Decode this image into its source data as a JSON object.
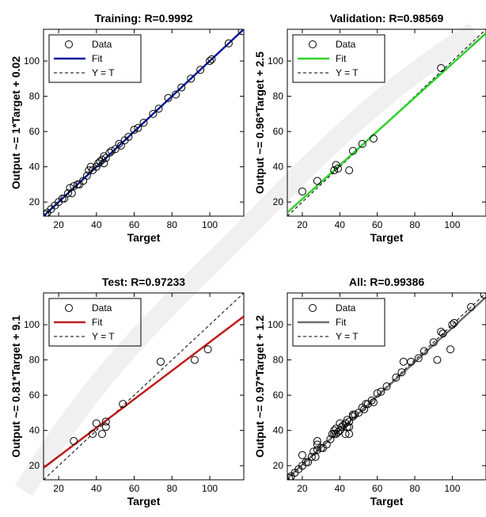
{
  "chart_data": [
    {
      "type": "scatter",
      "title": "Training: R=0.9992",
      "xlabel": "Target",
      "ylabel": "Output ~= 1*Target + 0.02",
      "xlim": [
        12,
        118
      ],
      "ylim": [
        12,
        118
      ],
      "xticks": [
        20,
        40,
        60,
        80,
        100
      ],
      "yticks": [
        20,
        40,
        60,
        80,
        100
      ],
      "legend": [
        "Data",
        "Fit",
        "Y = T"
      ],
      "legend_position": "top-left",
      "fit_color": "#0a1a9c",
      "fit": {
        "slope": 1.0,
        "intercept": 0.02
      },
      "points": [
        [
          13,
          13
        ],
        [
          14,
          14
        ],
        [
          16,
          16
        ],
        [
          18,
          18
        ],
        [
          20,
          20
        ],
        [
          22,
          22
        ],
        [
          23,
          22
        ],
        [
          25,
          25
        ],
        [
          26,
          28
        ],
        [
          27,
          25
        ],
        [
          28,
          29
        ],
        [
          30,
          30
        ],
        [
          31,
          30
        ],
        [
          33,
          32
        ],
        [
          35,
          35
        ],
        [
          36,
          38
        ],
        [
          37,
          40
        ],
        [
          38,
          38
        ],
        [
          40,
          40
        ],
        [
          41,
          42
        ],
        [
          42,
          43
        ],
        [
          43,
          44
        ],
        [
          44,
          42
        ],
        [
          44,
          46
        ],
        [
          45,
          45
        ],
        [
          47,
          48
        ],
        [
          48,
          49
        ],
        [
          50,
          50
        ],
        [
          52,
          53
        ],
        [
          53,
          52
        ],
        [
          55,
          55
        ],
        [
          57,
          57
        ],
        [
          60,
          61
        ],
        [
          62,
          62
        ],
        [
          65,
          65
        ],
        [
          70,
          70
        ],
        [
          73,
          73
        ],
        [
          78,
          79
        ],
        [
          82,
          81
        ],
        [
          85,
          85
        ],
        [
          90,
          90
        ],
        [
          95,
          95
        ],
        [
          100,
          100
        ],
        [
          101,
          101
        ],
        [
          110,
          110
        ],
        [
          117,
          117
        ]
      ]
    },
    {
      "type": "scatter",
      "title": "Validation: R=0.98569",
      "xlabel": "Target",
      "ylabel": "Output ~= 0.96*Target + 2.5",
      "xlim": [
        12,
        118
      ],
      "ylim": [
        12,
        118
      ],
      "xticks": [
        20,
        40,
        60,
        80,
        100
      ],
      "yticks": [
        20,
        40,
        60,
        80,
        100
      ],
      "legend": [
        "Data",
        "Fit",
        "Y = T"
      ],
      "legend_position": "top-left",
      "fit_color": "#2ed12e",
      "fit": {
        "slope": 0.96,
        "intercept": 2.5
      },
      "points": [
        [
          20,
          26
        ],
        [
          28,
          32
        ],
        [
          37,
          38
        ],
        [
          38,
          41
        ],
        [
          39,
          39
        ],
        [
          45,
          38
        ],
        [
          47,
          49
        ],
        [
          52,
          53
        ],
        [
          58,
          56
        ],
        [
          94,
          96
        ]
      ]
    },
    {
      "type": "scatter",
      "title": "Test: R=0.97233",
      "xlabel": "Target",
      "ylabel": "Output ~= 0.81*Target + 9.1",
      "xlim": [
        12,
        118
      ],
      "ylim": [
        12,
        118
      ],
      "xticks": [
        20,
        40,
        60,
        80,
        100
      ],
      "yticks": [
        20,
        40,
        60,
        80,
        100
      ],
      "legend": [
        "Data",
        "Fit",
        "Y = T"
      ],
      "legend_position": "top-left",
      "fit_color": "#c01c1c",
      "fit": {
        "slope": 0.81,
        "intercept": 9.1
      },
      "points": [
        [
          28,
          34
        ],
        [
          38,
          38
        ],
        [
          40,
          44
        ],
        [
          43,
          38
        ],
        [
          45,
          42
        ],
        [
          45,
          45
        ],
        [
          54,
          55
        ],
        [
          74,
          79
        ],
        [
          92,
          80
        ],
        [
          99,
          86
        ]
      ]
    },
    {
      "type": "scatter",
      "title": "All: R=0.99386",
      "xlabel": "Target",
      "ylabel": "Output ~= 0.97*Target + 1.2",
      "xlim": [
        12,
        118
      ],
      "ylim": [
        12,
        118
      ],
      "xticks": [
        20,
        40,
        60,
        80,
        100
      ],
      "yticks": [
        20,
        40,
        60,
        80,
        100
      ],
      "legend": [
        "Data",
        "Fit",
        "Y = T"
      ],
      "legend_position": "top-left",
      "fit_color": "#6e6e6e",
      "fit": {
        "slope": 0.97,
        "intercept": 1.2
      },
      "points": [
        [
          13,
          13
        ],
        [
          14,
          14
        ],
        [
          16,
          16
        ],
        [
          18,
          18
        ],
        [
          20,
          20
        ],
        [
          20,
          26
        ],
        [
          22,
          22
        ],
        [
          23,
          22
        ],
        [
          25,
          25
        ],
        [
          26,
          28
        ],
        [
          27,
          25
        ],
        [
          28,
          29
        ],
        [
          28,
          32
        ],
        [
          28,
          34
        ],
        [
          30,
          30
        ],
        [
          31,
          30
        ],
        [
          33,
          32
        ],
        [
          35,
          35
        ],
        [
          36,
          38
        ],
        [
          37,
          38
        ],
        [
          37,
          40
        ],
        [
          38,
          38
        ],
        [
          38,
          41
        ],
        [
          39,
          39
        ],
        [
          40,
          40
        ],
        [
          40,
          44
        ],
        [
          41,
          42
        ],
        [
          42,
          43
        ],
        [
          43,
          38
        ],
        [
          43,
          44
        ],
        [
          44,
          42
        ],
        [
          44,
          46
        ],
        [
          45,
          38
        ],
        [
          45,
          42
        ],
        [
          45,
          45
        ],
        [
          47,
          48
        ],
        [
          47,
          49
        ],
        [
          48,
          49
        ],
        [
          50,
          50
        ],
        [
          52,
          53
        ],
        [
          53,
          52
        ],
        [
          54,
          55
        ],
        [
          55,
          55
        ],
        [
          57,
          57
        ],
        [
          58,
          56
        ],
        [
          60,
          61
        ],
        [
          62,
          62
        ],
        [
          65,
          65
        ],
        [
          70,
          70
        ],
        [
          73,
          73
        ],
        [
          74,
          79
        ],
        [
          78,
          79
        ],
        [
          82,
          81
        ],
        [
          85,
          85
        ],
        [
          90,
          90
        ],
        [
          92,
          80
        ],
        [
          94,
          96
        ],
        [
          95,
          95
        ],
        [
          99,
          86
        ],
        [
          100,
          100
        ],
        [
          101,
          101
        ],
        [
          110,
          110
        ],
        [
          117,
          117
        ]
      ]
    }
  ]
}
